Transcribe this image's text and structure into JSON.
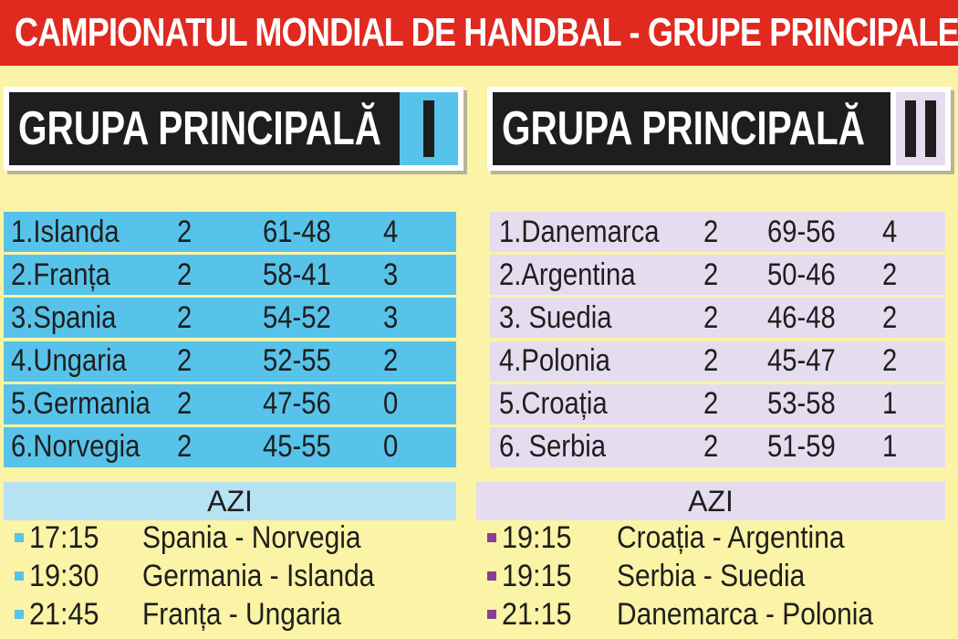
{
  "banner": {
    "title": "CAMPIONATUL MONDIAL DE HANDBAL - GRUPE PRINCIPALE"
  },
  "groups": [
    {
      "title": "GRUPA PRINCIPALĂ",
      "numeral": "I",
      "standings": [
        {
          "team": "1.Islanda",
          "played": "2",
          "goals": "61-48",
          "points": "4"
        },
        {
          "team": "2.Franța",
          "played": "2",
          "goals": "58-41",
          "points": "3"
        },
        {
          "team": "3.Spania",
          "played": "2",
          "goals": "54-52",
          "points": "3"
        },
        {
          "team": "4.Ungaria",
          "played": "2",
          "goals": "52-55",
          "points": "2"
        },
        {
          "team": "5.Germania",
          "played": "2",
          "goals": "47-56",
          "points": "0"
        },
        {
          "team": "6.Norvegia",
          "played": "2",
          "goals": "45-55",
          "points": "0"
        }
      ],
      "today_label": "AZI",
      "matches": [
        {
          "time": "17:15",
          "game": "Spania - Norvegia"
        },
        {
          "time": "19:30",
          "game": "Germania - Islanda"
        },
        {
          "time": "21:45",
          "game": "Franța - Ungaria"
        }
      ]
    },
    {
      "title": "GRUPA PRINCIPALĂ",
      "numeral": "II",
      "standings": [
        {
          "team": "1.Danemarca",
          "played": "2",
          "goals": "69-56",
          "points": "4"
        },
        {
          "team": "2.Argentina",
          "played": "2",
          "goals": "50-46",
          "points": "2"
        },
        {
          "team": "3.  Suedia",
          "played": "2",
          "goals": "46-48",
          "points": "2"
        },
        {
          "team": "4.Polonia",
          "played": "2",
          "goals": "45-47",
          "points": "2"
        },
        {
          "team": "5.Croația",
          "played": "2",
          "goals": "53-58",
          "points": "1"
        },
        {
          "team": "6.  Serbia",
          "played": "2",
          "goals": "51-59",
          "points": "1"
        }
      ],
      "today_label": "AZI",
      "matches": [
        {
          "time": "19:15",
          "game": "Croația - Argentina"
        },
        {
          "time": "19:15",
          "game": "Serbia - Suedia"
        },
        {
          "time": "21:15",
          "game": "Danemarca - Polonia"
        }
      ]
    }
  ],
  "colors": {
    "banner": "#e0291f",
    "group1_accent": "#58c3ea",
    "group2_accent": "#e6dcef",
    "group2_bullet": "#8b3e96",
    "background": "#fbf3a6"
  }
}
